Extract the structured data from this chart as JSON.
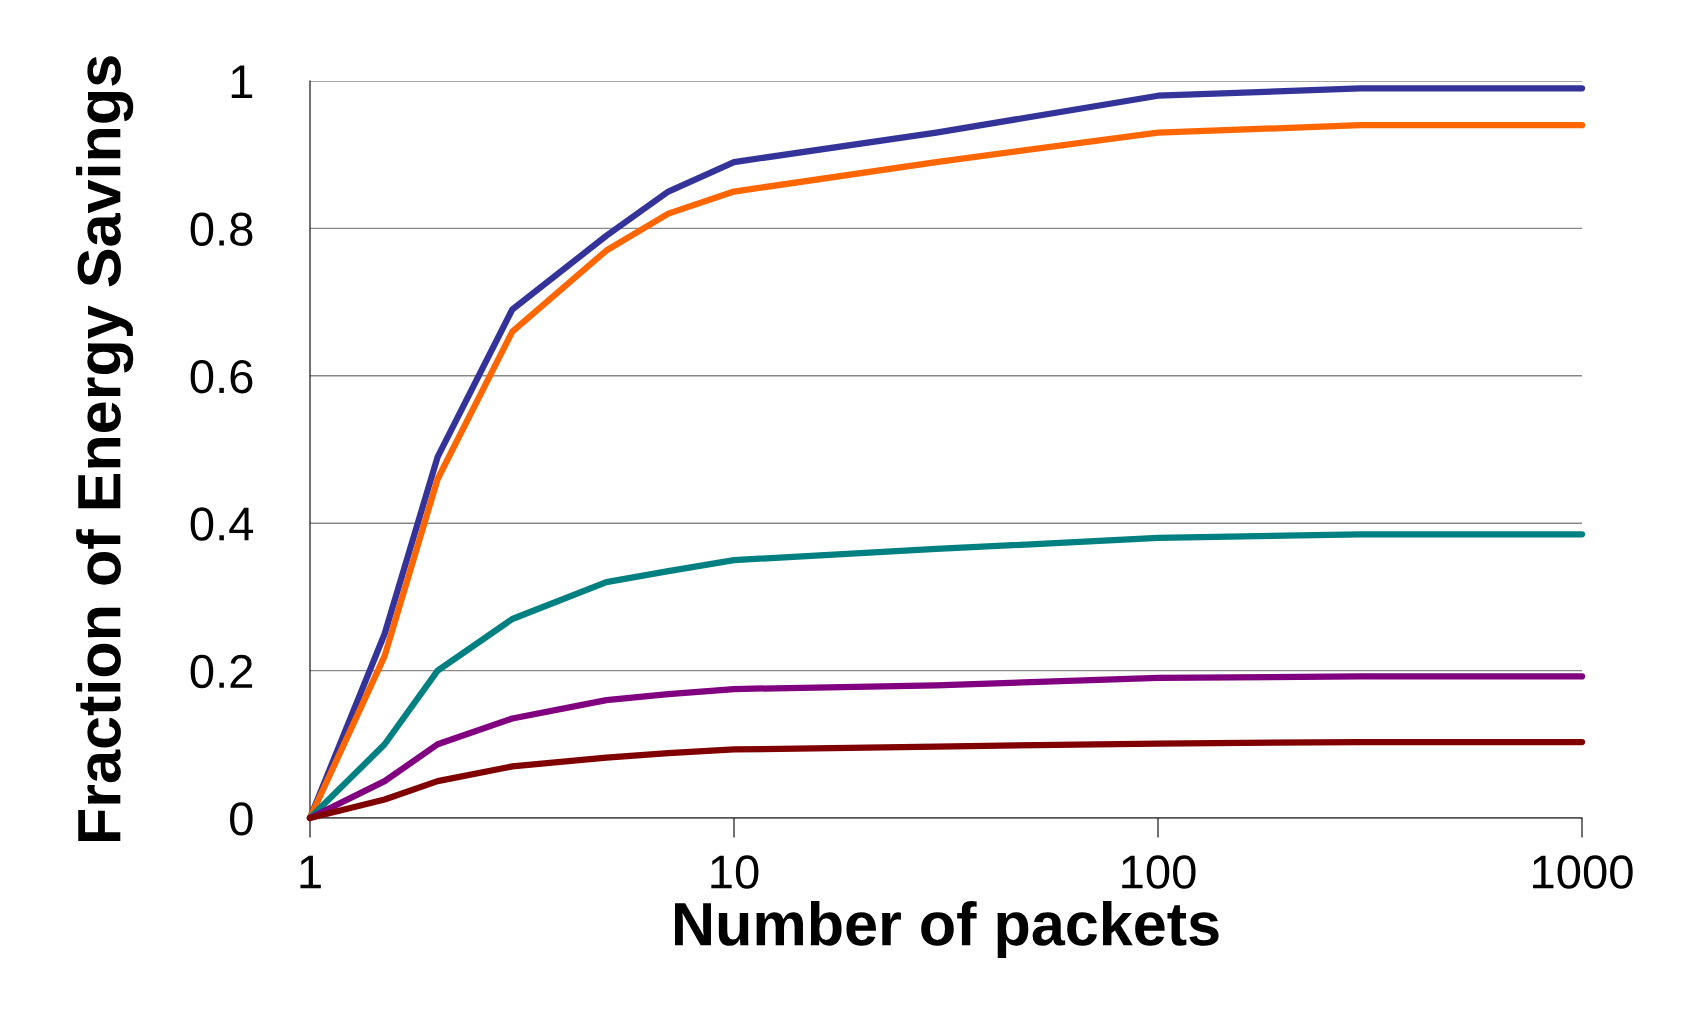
{
  "chart_data": {
    "type": "line",
    "xlabel": "Number of packets",
    "ylabel": "Fraction of Energy Savings",
    "log": "x",
    "grid": "y",
    "legend": false,
    "marker": "none",
    "line_style": "solid",
    "xlim": [
      1,
      1000
    ],
    "xticks": [
      1,
      10,
      100,
      1000
    ],
    "ylim": [
      0,
      1
    ],
    "yticks": [
      0,
      0.2,
      0.4,
      0.6,
      0.8,
      1
    ],
    "x": [
      1,
      1.5,
      2,
      3,
      5,
      7,
      10,
      30,
      100,
      300,
      1000
    ],
    "series": [
      {
        "color": "#333399",
        "values": [
          0,
          0.25,
          0.49,
          0.69,
          0.79,
          0.85,
          0.89,
          0.93,
          0.98,
          0.99,
          0.99
        ]
      },
      {
        "color": "#ff6600",
        "values": [
          0,
          0.22,
          0.46,
          0.66,
          0.77,
          0.82,
          0.85,
          0.89,
          0.93,
          0.94,
          0.94
        ]
      },
      {
        "color": "#008080",
        "values": [
          0,
          0.1,
          0.2,
          0.27,
          0.32,
          0.335,
          0.35,
          0.365,
          0.38,
          0.385,
          0.385
        ]
      },
      {
        "color": "#800080",
        "values": [
          0,
          0.05,
          0.1,
          0.135,
          0.16,
          0.168,
          0.175,
          0.18,
          0.19,
          0.192,
          0.192
        ]
      },
      {
        "color": "#800000",
        "values": [
          0,
          0.025,
          0.05,
          0.07,
          0.082,
          0.088,
          0.093,
          0.097,
          0.101,
          0.103,
          0.103
        ]
      }
    ]
  }
}
